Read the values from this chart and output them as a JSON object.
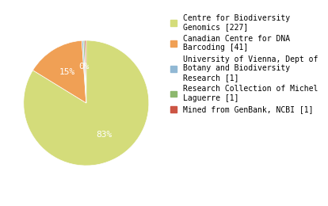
{
  "labels": [
    "Centre for Biodiversity\nGenomics [227]",
    "Canadian Centre for DNA\nBarcoding [41]",
    "University of Vienna, Dept of\nBotany and Biodiversity\nResearch [1]",
    "Research Collection of Michel\nLaguerre [1]",
    "Mined from GenBank, NCBI [1]"
  ],
  "values": [
    227,
    41,
    1,
    1,
    1
  ],
  "colors": [
    "#d4dc7a",
    "#f0a055",
    "#91b8d4",
    "#8db86e",
    "#cc5544"
  ],
  "pct_labels": [
    "83%",
    "15%",
    "0%",
    "",
    ""
  ],
  "startangle": 90,
  "legend_fontsize": 7.0,
  "pct_fontsize": 8,
  "text_color": "white"
}
